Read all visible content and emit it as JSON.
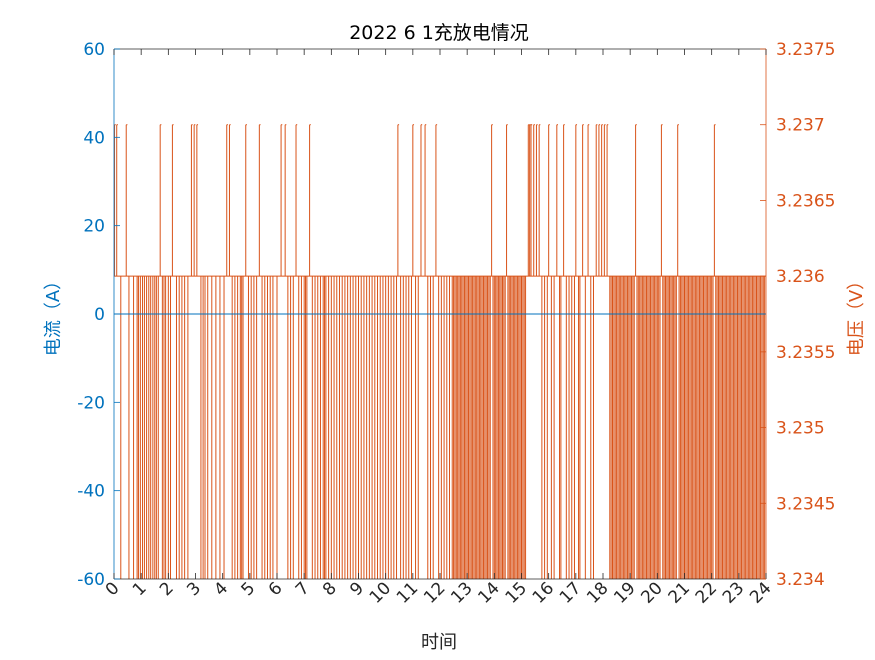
{
  "chart_data": {
    "type": "line",
    "title": "2022   6   1充放电情况",
    "xlabel": "时间",
    "ylabel_left": "电流（A）",
    "ylabel_right": "电压（V）",
    "xlim": [
      0,
      24
    ],
    "x_ticks": [
      0,
      1,
      2,
      3,
      4,
      5,
      6,
      7,
      8,
      9,
      10,
      11,
      12,
      13,
      14,
      15,
      16,
      17,
      18,
      19,
      20,
      21,
      22,
      23,
      24
    ],
    "ylim_left": [
      -60,
      60
    ],
    "y_ticks_left": [
      -60,
      -40,
      -20,
      0,
      20,
      40,
      60
    ],
    "ylim_right": [
      3.234,
      3.2375
    ],
    "y_ticks_right": [
      "3.234",
      "3.2345",
      "3.235",
      "3.2355",
      "3.236",
      "3.2365",
      "3.237",
      "3.2375"
    ],
    "grid": false,
    "colors": {
      "left_axis": "#0072BD",
      "right_axis": "#D95319",
      "title": "#000000"
    },
    "series": [
      {
        "axis": "left",
        "color": "#0072BD",
        "x": [
          0,
          24
        ],
        "values": [
          0,
          0
        ]
      },
      {
        "axis": "right",
        "color": "#D95319",
        "high_value": 3.237,
        "base_value": 3.236,
        "low_value": 3.234,
        "x_high": [
          0.02,
          0.1,
          0.45,
          1.7,
          2.15,
          2.85,
          2.95,
          3.05,
          4.15,
          4.25,
          4.85,
          5.35,
          6.15,
          6.3,
          6.7,
          7.2,
          10.45,
          11.0,
          11.3,
          11.45,
          11.85,
          13.9,
          14.45,
          15.25,
          15.3,
          15.35,
          15.45,
          15.55,
          15.65,
          16.0,
          16.3,
          16.55,
          17.0,
          17.25,
          17.45,
          17.75,
          17.85,
          17.95,
          18.05,
          18.15,
          19.2,
          20.15,
          20.75,
          22.1
        ],
        "x_low": [
          0.25,
          0.55,
          0.72,
          0.85,
          0.9,
          0.97,
          1.05,
          1.12,
          1.2,
          1.28,
          1.35,
          1.43,
          1.5,
          1.56,
          1.63,
          1.78,
          1.84,
          1.9,
          2.0,
          2.08,
          2.3,
          2.4,
          2.5,
          2.6,
          2.72,
          3.2,
          3.28,
          3.35,
          3.45,
          3.6,
          3.75,
          3.9,
          4.05,
          4.35,
          4.45,
          4.55,
          4.65,
          4.7,
          4.75,
          4.95,
          5.05,
          5.15,
          5.25,
          5.45,
          5.55,
          5.65,
          5.75,
          5.85,
          6.0,
          6.4,
          6.5,
          6.6,
          6.8,
          6.9,
          7.0,
          7.05,
          7.1,
          7.3,
          7.4,
          7.5,
          7.6,
          7.7,
          7.75,
          7.8,
          7.9,
          8.0,
          8.1,
          8.2,
          8.3,
          8.4,
          8.5,
          8.6,
          8.7,
          8.8,
          8.9,
          9.0,
          9.1,
          9.2,
          9.3,
          9.4,
          9.5,
          9.6,
          9.7,
          9.8,
          9.9,
          10.0,
          10.1,
          10.2,
          10.3,
          10.4,
          10.55,
          10.65,
          10.75,
          10.85,
          10.95,
          11.1,
          11.2,
          11.55,
          11.65,
          11.75,
          11.95,
          12.05,
          12.15,
          12.25,
          12.35,
          12.45,
          12.5,
          12.55,
          12.6,
          12.65,
          12.7,
          12.75,
          12.8,
          12.85,
          12.9,
          12.95,
          13.0,
          13.05,
          13.1,
          13.15,
          13.2,
          13.25,
          13.3,
          13.35,
          13.4,
          13.45,
          13.5,
          13.55,
          13.6,
          13.65,
          13.7,
          13.75,
          13.8,
          13.85,
          13.95,
          14.0,
          14.05,
          14.1,
          14.15,
          14.2,
          14.25,
          14.3,
          14.35,
          14.4,
          14.5,
          14.55,
          14.6,
          14.65,
          14.7,
          14.75,
          14.8,
          14.85,
          14.9,
          14.95,
          15.0,
          15.05,
          15.1,
          15.15,
          15.75,
          15.85,
          15.95,
          16.1,
          16.2,
          16.4,
          16.45,
          16.65,
          16.75,
          16.85,
          16.95,
          17.1,
          17.15,
          17.35,
          17.55,
          17.65,
          18.25,
          18.3,
          18.35,
          18.4,
          18.45,
          18.5,
          18.55,
          18.6,
          18.65,
          18.7,
          18.75,
          18.8,
          18.85,
          18.9,
          18.95,
          19.0,
          19.05,
          19.1,
          19.15,
          19.25,
          19.3,
          19.35,
          19.4,
          19.45,
          19.5,
          19.55,
          19.6,
          19.65,
          19.7,
          19.75,
          19.8,
          19.85,
          19.9,
          19.95,
          20.0,
          20.05,
          20.1,
          20.2,
          20.25,
          20.3,
          20.35,
          20.4,
          20.45,
          20.5,
          20.55,
          20.6,
          20.65,
          20.7,
          20.8,
          20.85,
          20.9,
          20.95,
          21.0,
          21.05,
          21.1,
          21.15,
          21.2,
          21.25,
          21.3,
          21.35,
          21.4,
          21.45,
          21.5,
          21.55,
          21.6,
          21.65,
          21.7,
          21.75,
          21.8,
          21.85,
          21.9,
          21.95,
          22.0,
          22.05,
          22.15,
          22.2,
          22.25,
          22.3,
          22.35,
          22.4,
          22.45,
          22.5,
          22.55,
          22.6,
          22.65,
          22.7,
          22.75,
          22.8,
          22.85,
          22.9,
          22.95,
          23.0,
          23.05,
          23.1,
          23.15,
          23.2,
          23.25,
          23.3,
          23.35,
          23.4,
          23.45,
          23.5,
          23.55,
          23.6,
          23.65,
          23.7,
          23.75,
          23.8,
          23.85,
          23.9,
          23.95
        ]
      }
    ]
  }
}
